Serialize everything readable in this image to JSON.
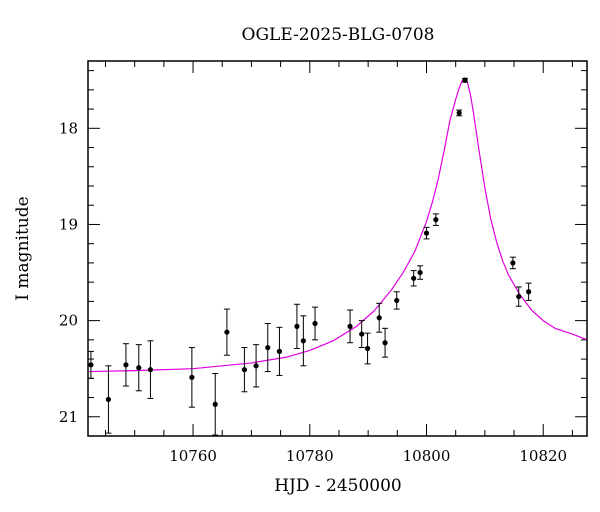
{
  "chart_data": {
    "type": "scatter",
    "title": "OGLE-2025-BLG-0708",
    "xlabel": "HJD - 2450000",
    "ylabel": "I magnitude",
    "xlim": [
      10742,
      10827.5
    ],
    "ylim": [
      21.2,
      17.3
    ],
    "y_inverted": true,
    "x_ticks": [
      10760,
      10780,
      10800,
      10820
    ],
    "y_ticks": [
      18,
      19,
      20,
      21
    ],
    "marker_color": "#000000",
    "model_color": "#e000e0",
    "series": [
      {
        "points": [
          {
            "x": 10742.5,
            "y": 20.46,
            "err": 0.14
          },
          {
            "x": 10745.5,
            "y": 20.82,
            "err": 0.35
          },
          {
            "x": 10748.5,
            "y": 20.46,
            "err": 0.22
          },
          {
            "x": 10750.7,
            "y": 20.49,
            "err": 0.24
          },
          {
            "x": 10752.7,
            "y": 20.51,
            "err": 0.3
          },
          {
            "x": 10759.8,
            "y": 20.59,
            "err": 0.31
          },
          {
            "x": 10763.8,
            "y": 20.87,
            "err": 0.32
          },
          {
            "x": 10765.8,
            "y": 20.12,
            "err": 0.24
          },
          {
            "x": 10768.8,
            "y": 20.51,
            "err": 0.23
          },
          {
            "x": 10770.8,
            "y": 20.47,
            "err": 0.22
          },
          {
            "x": 10772.8,
            "y": 20.28,
            "err": 0.25
          },
          {
            "x": 10774.8,
            "y": 20.32,
            "err": 0.25
          },
          {
            "x": 10777.8,
            "y": 20.06,
            "err": 0.23
          },
          {
            "x": 10778.9,
            "y": 20.21,
            "err": 0.26
          },
          {
            "x": 10780.9,
            "y": 20.03,
            "err": 0.17
          },
          {
            "x": 10786.9,
            "y": 20.06,
            "err": 0.17
          },
          {
            "x": 10788.9,
            "y": 20.14,
            "err": 0.14
          },
          {
            "x": 10789.9,
            "y": 20.29,
            "err": 0.16
          },
          {
            "x": 10791.9,
            "y": 19.97,
            "err": 0.15
          },
          {
            "x": 10792.9,
            "y": 20.23,
            "err": 0.15
          },
          {
            "x": 10794.9,
            "y": 19.79,
            "err": 0.09
          },
          {
            "x": 10797.8,
            "y": 19.56,
            "err": 0.08
          },
          {
            "x": 10798.9,
            "y": 19.5,
            "err": 0.07
          },
          {
            "x": 10800.0,
            "y": 19.09,
            "err": 0.06
          },
          {
            "x": 10801.6,
            "y": 18.95,
            "err": 0.06
          },
          {
            "x": 10805.6,
            "y": 17.84,
            "err": 0.03
          },
          {
            "x": 10806.6,
            "y": 17.5,
            "err": 0.02
          },
          {
            "x": 10814.8,
            "y": 19.4,
            "err": 0.06
          },
          {
            "x": 10815.8,
            "y": 19.75,
            "err": 0.1
          },
          {
            "x": 10817.5,
            "y": 19.7,
            "err": 0.09
          }
        ]
      }
    ],
    "model": {
      "type": "line",
      "x": [
        10742,
        10750,
        10760,
        10770,
        10776,
        10780,
        10784,
        10788,
        10791,
        10794,
        10796,
        10798,
        10800,
        10801,
        10802,
        10803,
        10804,
        10805,
        10805.5,
        10806,
        10806.3,
        10806.6,
        10807,
        10807.5,
        10808,
        10809,
        10810,
        10811,
        10812,
        10813,
        10814,
        10816,
        10818,
        10820,
        10822,
        10825,
        10827.5
      ],
      "y": [
        20.53,
        20.52,
        20.5,
        20.44,
        20.38,
        20.31,
        20.21,
        20.06,
        19.9,
        19.68,
        19.5,
        19.28,
        18.97,
        18.77,
        18.53,
        18.24,
        17.92,
        17.7,
        17.6,
        17.52,
        17.49,
        17.48,
        17.52,
        17.64,
        17.82,
        18.23,
        18.62,
        18.94,
        19.18,
        19.37,
        19.52,
        19.73,
        19.89,
        20.0,
        20.08,
        20.14,
        20.2
      ]
    }
  }
}
